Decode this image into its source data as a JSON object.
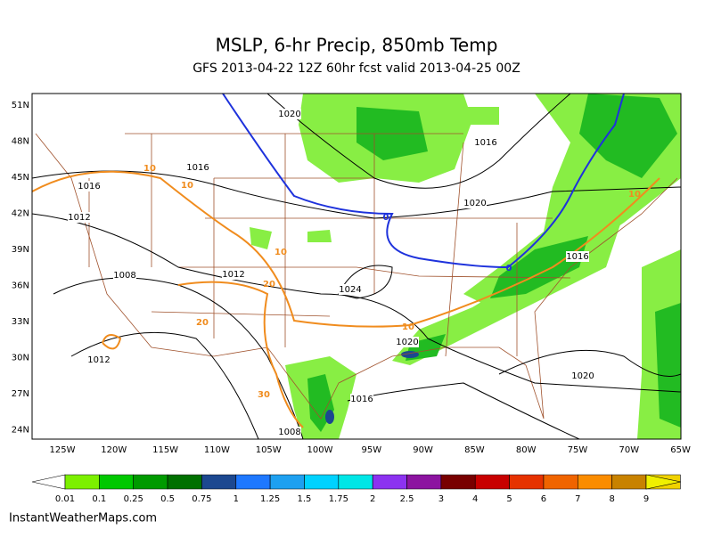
{
  "header": {
    "title": "MSLP, 6-hr Precip, 850mb Temp",
    "subtitle": "GFS 2013-04-22 12Z 60hr fcst valid 2013-04-25 00Z"
  },
  "map": {
    "lat_labels": [
      "51N",
      "48N",
      "45N",
      "42N",
      "39N",
      "36N",
      "33N",
      "30N",
      "27N",
      "24N"
    ],
    "lon_labels": [
      "125W",
      "120W",
      "115W",
      "110W",
      "105W",
      "100W",
      "95W",
      "90W",
      "85W",
      "80W",
      "75W",
      "70W",
      "65W"
    ],
    "pressure_labels": [
      "1020",
      "1016",
      "1016",
      "1016",
      "1020",
      "1012",
      "1016",
      "1008",
      "1012",
      "1024",
      "1020",
      "1012",
      "1020",
      "1016",
      "1008"
    ],
    "temp_labels": [
      "10",
      "10",
      "10",
      "10",
      "20",
      "20",
      "10",
      "30",
      "0",
      "0"
    ]
  },
  "colorbar": {
    "labels": [
      "0.01",
      "0.1",
      "0.25",
      "0.5",
      "0.75",
      "1",
      "1.25",
      "1.5",
      "1.75",
      "2",
      "2.5",
      "3",
      "4",
      "5",
      "6",
      "7",
      "8",
      "9"
    ],
    "colors": [
      "#ffffff",
      "#7cf000",
      "#00c800",
      "#009a00",
      "#007000",
      "#1c4890",
      "#1e78ff",
      "#1ea0f0",
      "#00d2ff",
      "#00e6e6",
      "#8c32f0",
      "#8c14a0",
      "#780000",
      "#c80000",
      "#e63200",
      "#f06400",
      "#fa8c00",
      "#c88200",
      "#f0d200",
      "#f0f000"
    ]
  },
  "footer": {
    "source": "InstantWeatherMaps.com"
  }
}
